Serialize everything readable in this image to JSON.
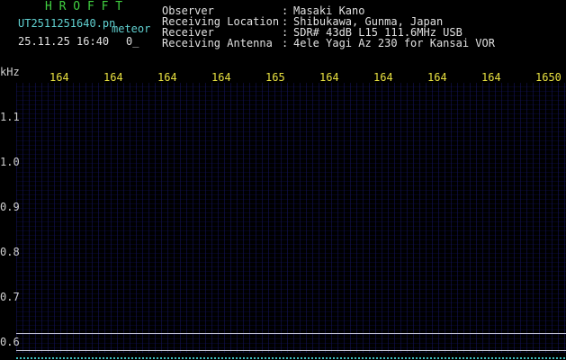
{
  "app": {
    "title": "H R O F F T",
    "file": "UT2511251640.pn",
    "mode": "meteor",
    "datetime": "25.11.25 16:40",
    "counter": "0_"
  },
  "info": {
    "separator": ":",
    "rows": [
      {
        "label": "Observer",
        "value": "Masaki Kano"
      },
      {
        "label": "Receiving Location",
        "value": "Shibukawa, Gunma, Japan"
      },
      {
        "label": "Receiver",
        "value": "SDR# 43dB L15 111.6MHz USB"
      },
      {
        "label": "Receiving Antenna",
        "value": "4ele Yagi Az 230 for Kansai VOR"
      }
    ]
  },
  "spectrum": {
    "y_unit": "kHz",
    "x_labels": [
      "164",
      "164",
      "164",
      "164",
      "165",
      "164",
      "164",
      "164",
      "164",
      "1650"
    ],
    "y_labels": [
      "1.1",
      "1.0",
      "0.9",
      "0.8",
      "0.7",
      "0.6"
    ]
  }
}
